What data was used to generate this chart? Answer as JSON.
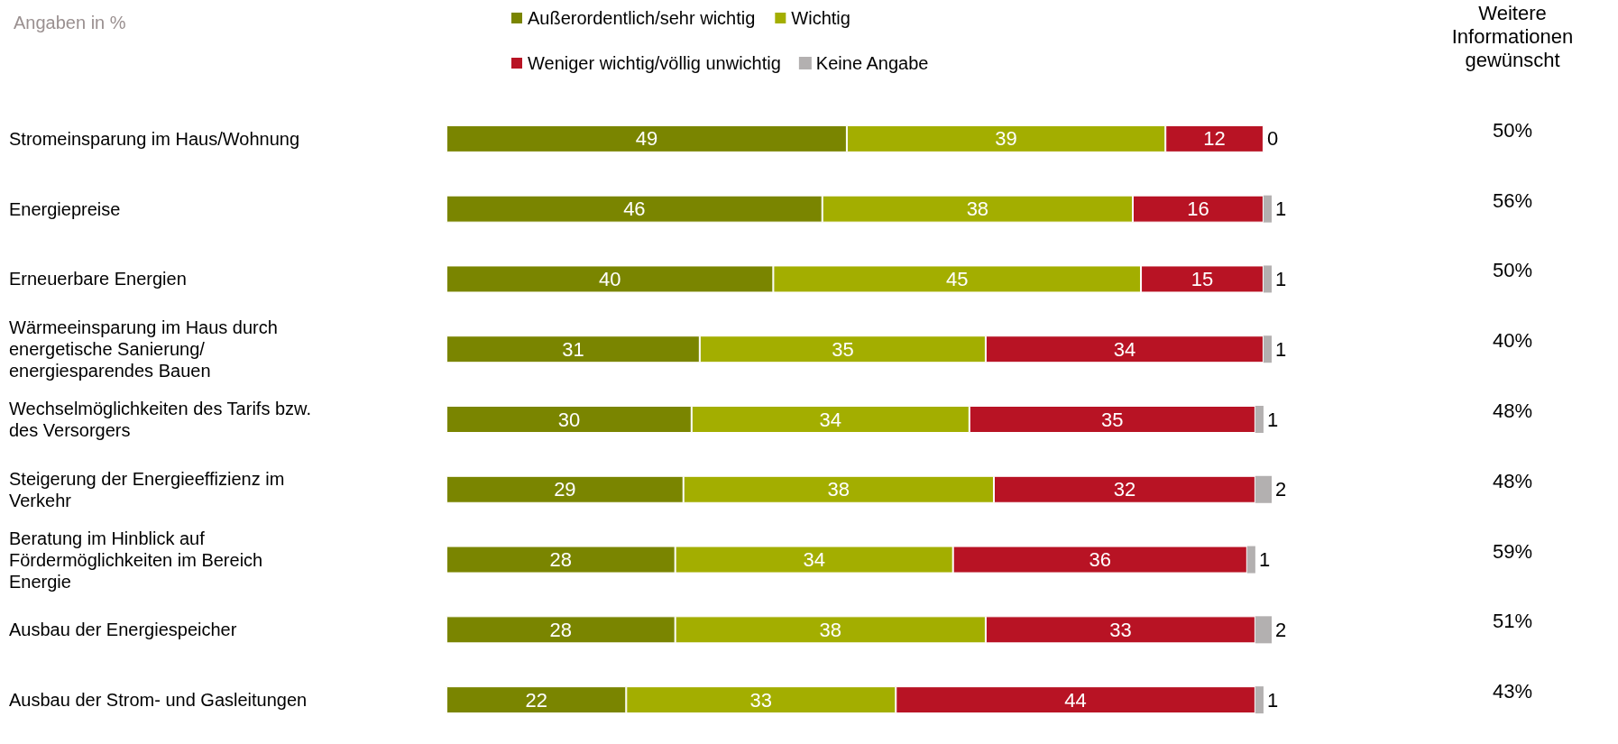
{
  "chart_data": [
    {
      "type": "bar",
      "orientation": "horizontal",
      "stacked": true,
      "data_labels": true,
      "legend": "top",
      "tick_labels": "y",
      "subtitle": "Angaben in %",
      "categories": [
        "Stromeinsparung im Haus/Wohnung",
        "Energiepreise",
        "Erneuerbare Energien",
        "Wärmeeinsparung im Haus durch energetische Sanierung/ energiesparendes Bauen",
        "Wechselmöglichkeiten des Tarifs bzw. des Versorgers",
        "Steigerung der Energieeffizienz im Verkehr",
        "Beratung im Hinblick auf Fördermöglichkeiten im Bereich Energie",
        "Ausbau der Energiespeicher",
        "Ausbau der Strom- und Gasleitungen"
      ],
      "series": [
        {
          "name": "Außerordentlich/sehr wichtig",
          "color": "#7a8500",
          "values": [
            49,
            46,
            40,
            31,
            30,
            29,
            28,
            28,
            22
          ]
        },
        {
          "name": "Wichtig",
          "color": "#a3ae00",
          "values": [
            39,
            38,
            45,
            35,
            34,
            38,
            34,
            38,
            33
          ]
        },
        {
          "name": "Weniger wichtig/völlig unwichtig",
          "color": "#b81324",
          "values": [
            12,
            16,
            15,
            34,
            35,
            32,
            36,
            33,
            44
          ]
        },
        {
          "name": "Keine Angabe",
          "color": "#b3b0b0",
          "values": [
            0,
            1,
            1,
            1,
            1,
            2,
            1,
            2,
            1
          ]
        }
      ]
    },
    {
      "type": "other",
      "title": "Weitere Informationen gewünscht",
      "annotations": [
        "50%",
        "56%",
        "50%",
        "40%",
        "48%",
        "48%",
        "59%",
        "51%",
        "43%"
      ]
    }
  ]
}
